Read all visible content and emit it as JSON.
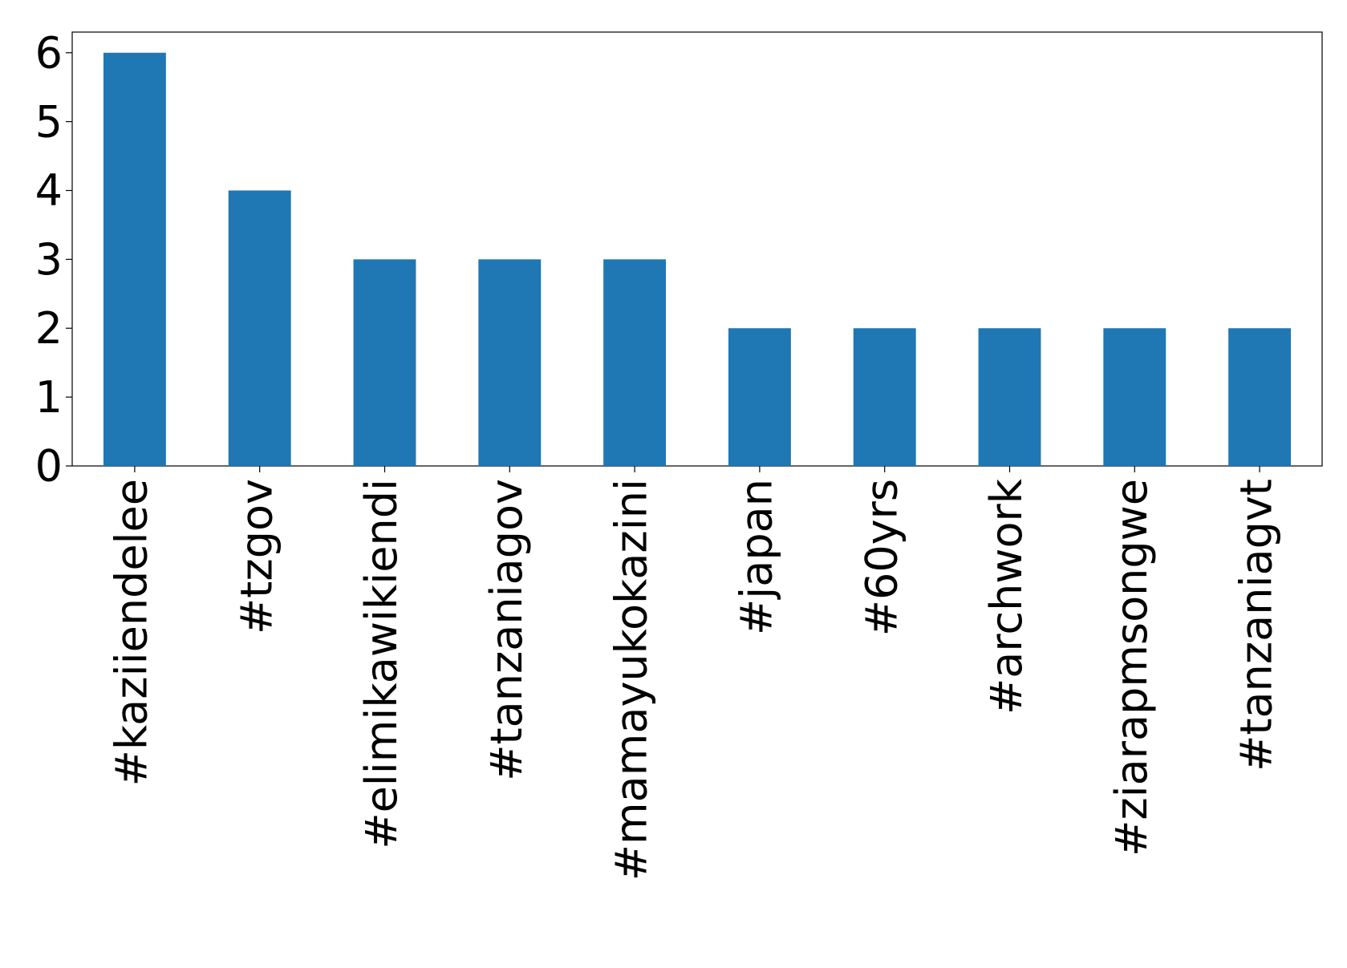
{
  "chart_data": {
    "type": "bar",
    "categories": [
      "#kaziiendelee",
      "#tzgov",
      "#elimikawikiendi",
      "#tanzaniagov",
      "#mamayukokazini",
      "#japan",
      "#60yrs",
      "#archwork",
      "#ziarapmsongwe",
      "#tanzaniagvt"
    ],
    "values": [
      6,
      4,
      3,
      3,
      3,
      2,
      2,
      2,
      2,
      2
    ],
    "color": "#1f77b4",
    "ylim": [
      0,
      6.3
    ],
    "yticks": [
      0,
      1,
      2,
      3,
      4,
      5,
      6
    ],
    "grid": false
  }
}
